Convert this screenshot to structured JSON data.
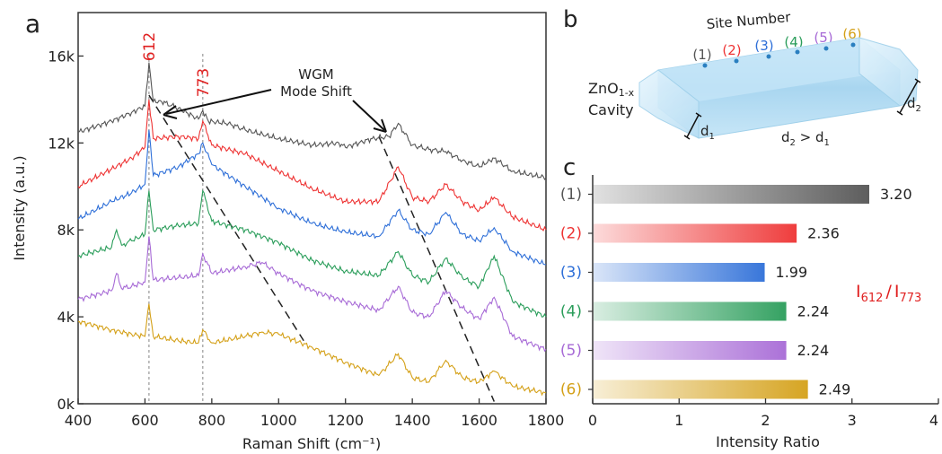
{
  "panel_letters": {
    "a": "a",
    "b": "b",
    "c": "c"
  },
  "colors": {
    "site1": "#555555",
    "site2": "#ee3333",
    "site3": "#2e6fd8",
    "site4": "#2a9d5a",
    "site5": "#a76ad6",
    "site6": "#d4a017",
    "peak_label": "#e02020",
    "ratio_label": "#e02020"
  },
  "chart_data": [
    {
      "type": "line",
      "xlabel": "Raman Shift (cm⁻¹)",
      "ylabel": "Intensity (a.u.)",
      "xlim": [
        400,
        1800
      ],
      "ylim": [
        0,
        18000
      ],
      "x_ticks": [
        400,
        600,
        800,
        1000,
        1200,
        1400,
        1600,
        1800
      ],
      "x_tick_labels": [
        "400",
        "600",
        "800",
        "1000",
        "1200",
        "1400",
        "1600",
        "1800"
      ],
      "y_ticks": [
        0,
        4000,
        8000,
        12000,
        16000
      ],
      "y_tick_labels": [
        "0k",
        "4k",
        "8k",
        "12k",
        "16k"
      ],
      "peak_markers": [
        {
          "x": 612,
          "label": "612"
        },
        {
          "x": 773,
          "label": "773"
        }
      ],
      "annotation": {
        "line1": "WGM",
        "line2": "Mode Shift"
      },
      "series": [
        {
          "site": "(1)",
          "color": "#555555",
          "x": [
            400,
            500,
            560,
            600,
            612,
            625,
            650,
            700,
            760,
            773,
            790,
            850,
            900,
            1000,
            1100,
            1180,
            1200,
            1280,
            1330,
            1358,
            1400,
            1450,
            1500,
            1550,
            1600,
            1645,
            1700,
            1800
          ],
          "y": [
            12500,
            13000,
            13400,
            13700,
            15700,
            13900,
            13900,
            13600,
            13100,
            13500,
            13000,
            12900,
            12600,
            12200,
            11900,
            12000,
            11800,
            12200,
            12300,
            12900,
            11900,
            11700,
            11600,
            11200,
            10900,
            11300,
            10700,
            10400
          ]
        },
        {
          "site": "(2)",
          "color": "#ee3333",
          "x": [
            400,
            500,
            560,
            600,
            612,
            625,
            700,
            760,
            773,
            800,
            900,
            1000,
            1100,
            1200,
            1300,
            1358,
            1400,
            1450,
            1500,
            1550,
            1600,
            1645,
            1700,
            1800
          ],
          "y": [
            10000,
            10800,
            11300,
            11800,
            14000,
            12200,
            12300,
            12200,
            13000,
            11900,
            11500,
            10700,
            9900,
            9300,
            9300,
            10900,
            9500,
            9300,
            10100,
            9300,
            8900,
            9500,
            8600,
            8000
          ]
        },
        {
          "site": "(3)",
          "color": "#2e6fd8",
          "x": [
            400,
            500,
            560,
            600,
            612,
            625,
            700,
            760,
            773,
            800,
            900,
            1000,
            1100,
            1200,
            1300,
            1358,
            1400,
            1450,
            1500,
            1550,
            1600,
            1645,
            1700,
            1800
          ],
          "y": [
            8500,
            9300,
            9700,
            10100,
            12600,
            10500,
            10900,
            11500,
            12000,
            11000,
            10000,
            9000,
            8300,
            7900,
            7700,
            8900,
            8000,
            7800,
            8800,
            7800,
            7500,
            8100,
            7000,
            6400
          ]
        },
        {
          "site": "(4)",
          "color": "#2a9d5a",
          "x": [
            400,
            500,
            515,
            530,
            560,
            600,
            612,
            625,
            700,
            760,
            773,
            800,
            900,
            1000,
            1100,
            1200,
            1300,
            1358,
            1400,
            1450,
            1500,
            1550,
            1600,
            1645,
            1700,
            1800
          ],
          "y": [
            6800,
            7200,
            8000,
            7300,
            7500,
            7800,
            9800,
            8000,
            8200,
            8300,
            9800,
            8400,
            8000,
            7400,
            6600,
            6100,
            5900,
            7000,
            5900,
            5600,
            6700,
            5800,
            5400,
            6800,
            4700,
            4000
          ]
        },
        {
          "site": "(5)",
          "color": "#a76ad6",
          "x": [
            400,
            500,
            515,
            530,
            560,
            600,
            612,
            625,
            700,
            760,
            773,
            800,
            900,
            950,
            1000,
            1100,
            1200,
            1300,
            1358,
            1400,
            1450,
            1500,
            1550,
            1600,
            1645,
            1700,
            1800
          ],
          "y": [
            4800,
            5200,
            6000,
            5300,
            5400,
            5600,
            7700,
            5700,
            5800,
            5900,
            6900,
            6000,
            6300,
            6500,
            6000,
            5200,
            4700,
            4300,
            5400,
            4200,
            4000,
            5200,
            4400,
            3900,
            4900,
            3100,
            2500
          ]
        },
        {
          "site": "(6)",
          "color": "#d4a017",
          "x": [
            400,
            500,
            560,
            600,
            612,
            625,
            700,
            760,
            773,
            800,
            900,
            950,
            1000,
            1100,
            1200,
            1300,
            1358,
            1400,
            1450,
            1500,
            1550,
            1600,
            1645,
            1700,
            1800
          ],
          "y": [
            3800,
            3400,
            3200,
            3100,
            4600,
            3100,
            2900,
            2800,
            3400,
            2800,
            3100,
            3300,
            3200,
            2600,
            1900,
            1300,
            2300,
            1200,
            1000,
            2000,
            1200,
            1000,
            1500,
            800,
            500
          ]
        }
      ]
    },
    {
      "type": "bar",
      "orientation": "horizontal",
      "xlabel": "Intensity Ratio",
      "xlim": [
        0,
        4
      ],
      "x_ticks": [
        0,
        1,
        2,
        3,
        4
      ],
      "x_tick_labels": [
        "0",
        "1",
        "2",
        "3",
        "4"
      ],
      "categories": [
        "(1)",
        "(2)",
        "(3)",
        "(4)",
        "(5)",
        "(6)"
      ],
      "values": [
        3.2,
        2.36,
        1.99,
        2.24,
        2.24,
        2.49
      ],
      "value_labels": [
        "3.20",
        "2.36",
        "1.99",
        "2.24",
        "2.24",
        "2.49"
      ],
      "ratio_label": {
        "i1": "I",
        "sub1": "612",
        "slash": "/",
        "i2": "I",
        "sub2": "773"
      }
    }
  ],
  "diagram": {
    "title": "Site Number",
    "sites": [
      "(1)",
      "(2)",
      "(3)",
      "(4)",
      "(5)",
      "(6)"
    ],
    "material_main": "ZnO",
    "material_sub": "1-x",
    "cavity_label": "Cavity",
    "d1": "d",
    "d1_sub": "1",
    "d2": "d",
    "d2_sub": "2",
    "relation": {
      "d2": "d",
      "d2_sub": "2",
      "op": " > ",
      "d1": "d",
      "d1_sub": "1"
    }
  }
}
